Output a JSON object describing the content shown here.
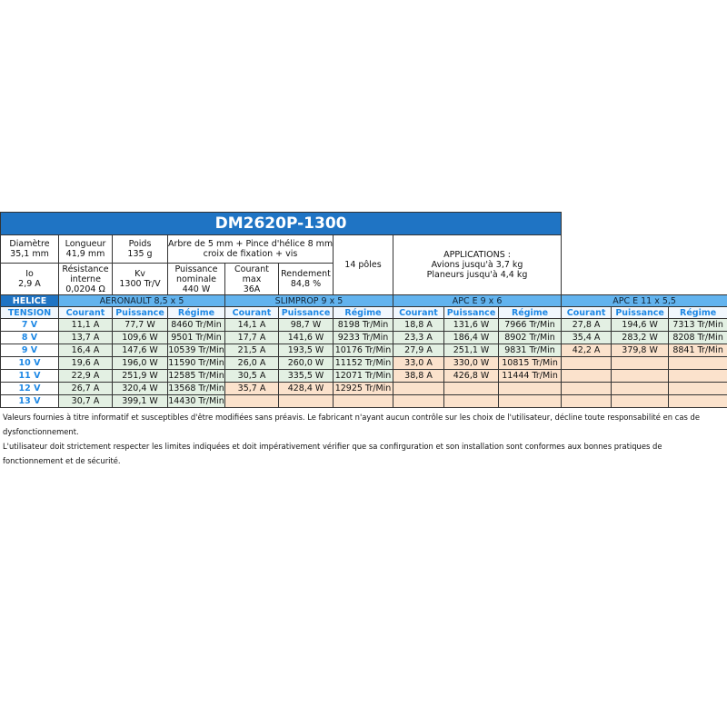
{
  "title": "DM2620P-1300",
  "specs": [
    [
      {
        "lines": [
          "Diamètre",
          "35,1 mm"
        ]
      },
      {
        "lines": [
          "Longueur",
          "41,9 mm"
        ]
      },
      {
        "lines": [
          "Poids",
          "135 g"
        ]
      },
      {
        "lines": [
          "Arbre de 5 mm + Pince d'hélice 8 mm +",
          "croix de fixation + vis"
        ]
      }
    ],
    [
      {
        "lines": [
          "Io",
          "2,9 A"
        ]
      },
      {
        "lines": [
          "Résistance",
          "interne",
          "0,0204 Ω"
        ]
      },
      {
        "lines": [
          "Kv",
          "1300 Tr/V"
        ]
      },
      {
        "lines": [
          "Puissance",
          "nominale",
          "440 W"
        ]
      },
      {
        "lines": [
          "Courant",
          "max",
          "36A"
        ]
      },
      {
        "lines": [
          "Rendement",
          "84,8 %"
        ]
      }
    ]
  ],
  "poles": "14 pôles",
  "applications": {
    "heading": "APPLICATIONS :",
    "lines": [
      "Avions jusqu'à 3,7 kg",
      "Planeurs jusqu'à 4,4 kg"
    ]
  },
  "helice_label": "HELICE",
  "tension_label": "TENSION",
  "tensions": [
    "7 V",
    "8 V",
    "9 V",
    "10 V",
    "11 V",
    "12 V",
    "13 V"
  ],
  "column_headers": [
    "Courant",
    "Puissance",
    "Régime"
  ],
  "props": [
    {
      "name": "AERONAULT 8,5 x 5",
      "rows": [
        [
          "11,1 A",
          "77,7 W",
          "8460 Tr/Min"
        ],
        [
          "13,7 A",
          "109,6 W",
          "9501 Tr/Min"
        ],
        [
          "16,4 A",
          "147,6 W",
          "10539 Tr/Min"
        ],
        [
          "19,6 A",
          "196,0 W",
          "11590 Tr/Min"
        ],
        [
          "22,9 A",
          "251,9 W",
          "12585 Tr/Min"
        ],
        [
          "26,7 A",
          "320,4 W",
          "13568 Tr/Min"
        ],
        [
          "30,7 A",
          "399,1 W",
          "14430 Tr/Min"
        ]
      ],
      "colors": [
        "#e3f0e3",
        "#e3f0e3",
        "#e3f0e3",
        "#e3f0e3",
        "#e3f0e3",
        "#e3f0e3",
        "#e3f0e3"
      ]
    },
    {
      "name": "SLIMPROP 9 x 5",
      "rows": [
        [
          "14,1 A",
          "98,7 W",
          "8198 Tr/Min"
        ],
        [
          "17,7 A",
          "141,6 W",
          "9233 Tr/Min"
        ],
        [
          "21,5 A",
          "193,5 W",
          "10176 Tr/Min"
        ],
        [
          "26,0 A",
          "260,0 W",
          "11152 Tr/Min"
        ],
        [
          "30,5 A",
          "335,5 W",
          "12071 Tr/Min"
        ],
        [
          "35,7 A",
          "428,4 W",
          "12925 Tr/Min"
        ],
        null
      ],
      "colors": [
        "#e3f0e3",
        "#e3f0e3",
        "#e3f0e3",
        "#e3f0e3",
        "#e3f0e3",
        "#fbe2cc",
        "#fbe2cc"
      ]
    },
    {
      "name": "APC E 9 x 6",
      "rows": [
        [
          "18,8 A",
          "131,6 W",
          "7966 Tr/Min"
        ],
        [
          "23,3 A",
          "186,4 W",
          "8902 Tr/Min"
        ],
        [
          "27,9 A",
          "251,1 W",
          "9831 Tr/Min"
        ],
        [
          "33,0 A",
          "330,0 W",
          "10815 Tr/Min"
        ],
        [
          "38,8 A",
          "426,8 W",
          "11444 Tr/Min"
        ],
        null,
        null
      ],
      "colors": [
        "#e3f0e3",
        "#e3f0e3",
        "#e3f0e3",
        "#fbe2cc",
        "#fbe2cc",
        "#fbe2cc",
        "#fbe2cc"
      ]
    },
    {
      "name": "APC E 11 x 5,5",
      "rows": [
        [
          "27,8 A",
          "194,6 W",
          "7313 Tr/Min"
        ],
        [
          "35,4 A",
          "283,2 W",
          "8208 Tr/Min"
        ],
        [
          "42,2 A",
          "379,8 W",
          "8841 Tr/Min"
        ],
        null,
        null,
        null,
        null
      ],
      "colors": [
        "#e3f0e3",
        "#e3f0e3",
        "#fbe2cc",
        "#fbe2cc",
        "#fbe2cc",
        "#fbe2cc",
        "#fbe2cc"
      ]
    }
  ],
  "notes": [
    "Valeurs fournies à titre informatif et susceptibles d'être modifiées sans préavis. Le fabricant n'ayant aucun contrôle sur les choix de l'utilisateur, décline toute responsabilité en cas de dysfonctionnement.",
    "L'utilisateur doit strictement respecter les limites indiquées et doit impérativement vérifier que sa confirguration et son installation sont conformes aux bonnes pratiques de fonctionnement et de sécurité."
  ]
}
